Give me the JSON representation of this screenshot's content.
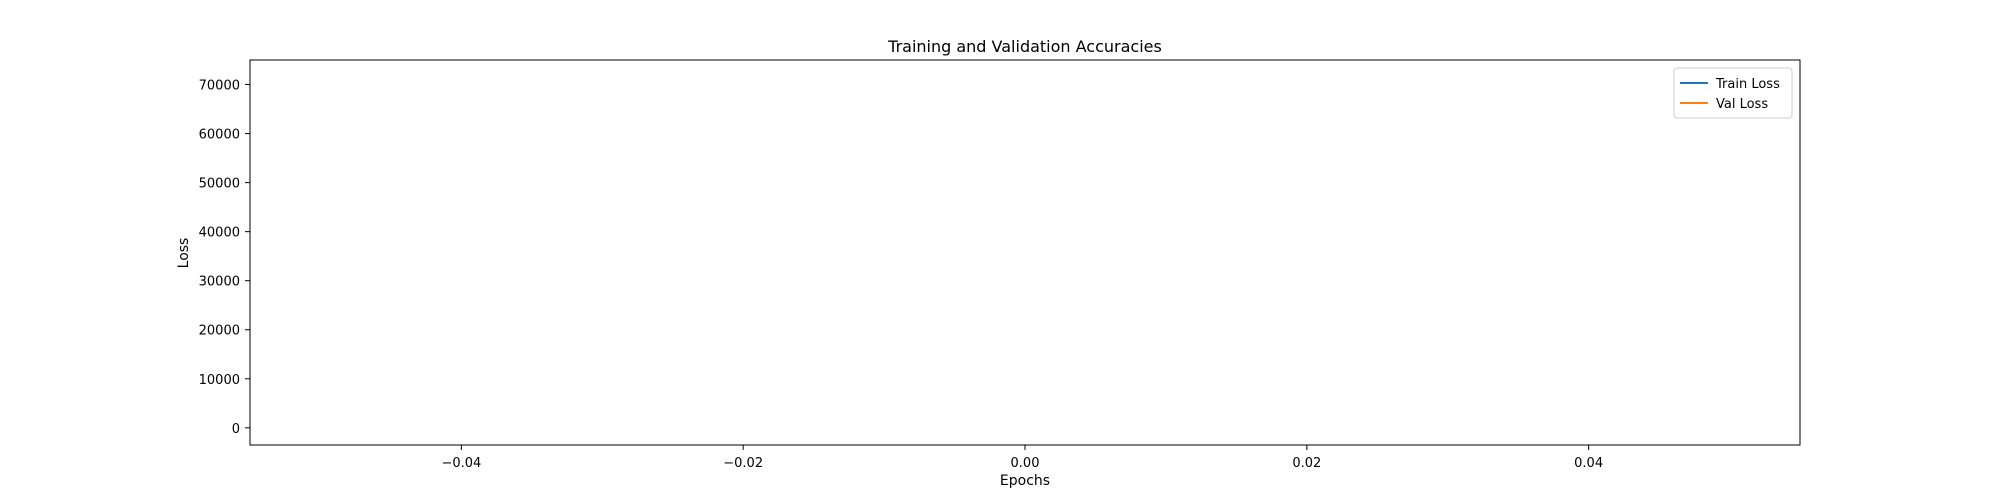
{
  "chart_data": {
    "type": "line",
    "title": "Training and Validation Accuracies",
    "xlabel": "Epochs",
    "ylabel": "Loss",
    "xlim": [
      -0.055,
      0.055
    ],
    "ylim": [
      -3500,
      75000
    ],
    "x_ticks": [
      -0.04,
      -0.02,
      0.0,
      0.02,
      0.04
    ],
    "x_tick_labels": [
      "−0.04",
      "−0.02",
      "0.00",
      "0.02",
      "0.04"
    ],
    "y_ticks": [
      0,
      10000,
      20000,
      30000,
      40000,
      50000,
      60000,
      70000
    ],
    "y_tick_labels": [
      "0",
      "10000",
      "20000",
      "30000",
      "40000",
      "50000",
      "60000",
      "70000"
    ],
    "grid": false,
    "legend_position": "top-right",
    "series": [
      {
        "name": "Train Loss",
        "color": "#1f77b4",
        "x": [],
        "y": []
      },
      {
        "name": "Val Loss",
        "color": "#ff7f0e",
        "x": [],
        "y": []
      }
    ]
  }
}
